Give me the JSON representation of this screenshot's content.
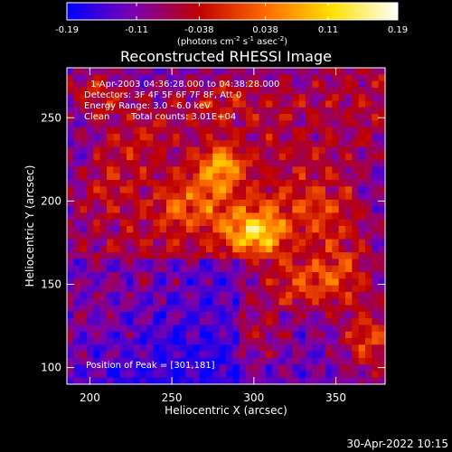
{
  "chart_data": {
    "type": "heatmap",
    "title": "Reconstructed RHESSI Image",
    "xlabel": "Heliocentric X (arcsec)",
    "ylabel": "Heliocentric Y (arcsec)",
    "xlim": [
      186,
      380
    ],
    "ylim": [
      90,
      280
    ],
    "x_ticks": [
      200,
      250,
      300,
      350
    ],
    "y_ticks": [
      100,
      150,
      200,
      250
    ],
    "colorbar": {
      "min": -0.19,
      "max": 0.19,
      "tick_values": [
        -0.19,
        -0.11,
        -0.038,
        0.038,
        0.11,
        0.19
      ],
      "tick_labels": [
        "-0.19",
        "-0.11",
        "-0.038",
        "0.038",
        "0.11",
        "0.19"
      ],
      "units_main": "(photons cm",
      "units_sup1": "-2",
      "units_mid": " s",
      "units_sup2": "-1",
      "units_mid2": " asec",
      "units_sup3": "-2",
      "units_end": ")",
      "colors": [
        "#0000ff",
        "#7a00b0",
        "#c00000",
        "#ff6a00",
        "#ffe000",
        "#ffffff"
      ]
    },
    "annotations": {
      "time_range": "1-Apr-2003 04:36:28.000 to 04:38:28.000",
      "detectors": "Detectors: 3F 4F 5F 6F 7F 8F, Att 0",
      "energy": "Energy Range: 3.0 - 6.0 keV",
      "clean": "Clean",
      "counts": "Total counts: 3.01E+04",
      "peak": "Position of Peak = [301,181]"
    },
    "peak": [
      301,
      181
    ],
    "sources": [
      {
        "x": 301,
        "y": 181,
        "amp": 0.19,
        "sx": 14,
        "sy": 10
      },
      {
        "x": 280,
        "y": 222,
        "amp": 0.14,
        "sx": 10,
        "sy": 9
      },
      {
        "x": 262,
        "y": 200,
        "amp": 0.09,
        "sx": 18,
        "sy": 12
      },
      {
        "x": 340,
        "y": 195,
        "amp": 0.08,
        "sx": 18,
        "sy": 14
      },
      {
        "x": 330,
        "y": 150,
        "amp": 0.1,
        "sx": 16,
        "sy": 12
      },
      {
        "x": 370,
        "y": 115,
        "amp": 0.11,
        "sx": 12,
        "sy": 14
      },
      {
        "x": 355,
        "y": 160,
        "amp": 0.09,
        "sx": 14,
        "sy": 16
      },
      {
        "x": 230,
        "y": 240,
        "amp": 0.07,
        "sx": 18,
        "sy": 14
      },
      {
        "x": 210,
        "y": 210,
        "amp": 0.06,
        "sx": 14,
        "sy": 14
      },
      {
        "x": 280,
        "y": 260,
        "amp": 0.07,
        "sx": 20,
        "sy": 10
      },
      {
        "x": 205,
        "y": 265,
        "amp": 0.08,
        "sx": 14,
        "sy": 10
      },
      {
        "x": 300,
        "y": 120,
        "amp": 0.05,
        "sx": 14,
        "sy": 12
      }
    ]
  },
  "footer": {
    "date": "30-Apr-2022 10:15"
  }
}
